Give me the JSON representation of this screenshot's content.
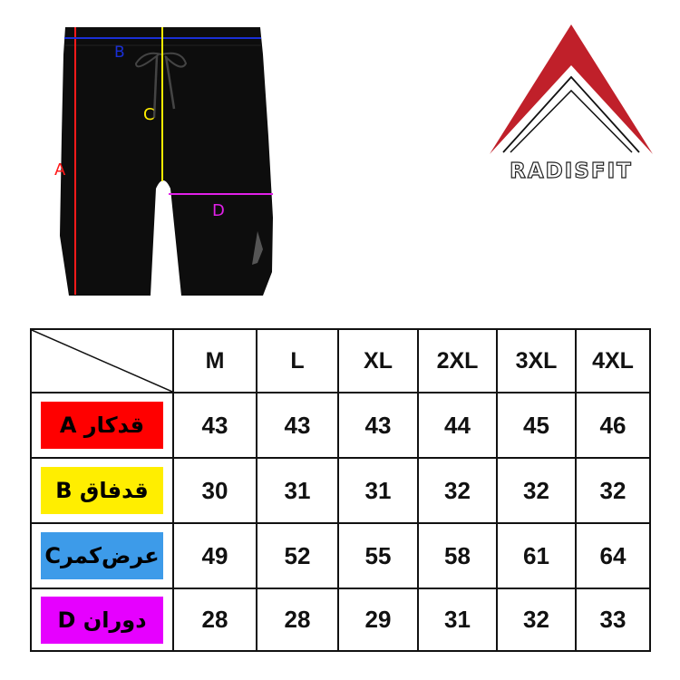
{
  "product_image": {
    "measure_labels": [
      {
        "letter": "A",
        "color": "#ff1a1a"
      },
      {
        "letter": "B",
        "color": "#1a2fd6"
      },
      {
        "letter": "C",
        "color": "#ffee00"
      },
      {
        "letter": "D",
        "color": "#e020e8"
      }
    ],
    "garment_color": "#0d0d0d"
  },
  "logo": {
    "text": "RADISFIT",
    "accent": "#c0202a"
  },
  "size_table": {
    "sizes": [
      "M",
      "L",
      "XL",
      "2XL",
      "3XL",
      "4XL"
    ],
    "rows": [
      {
        "label": "قدکار A",
        "color": "#ff0000",
        "values": [
          "43",
          "43",
          "43",
          "44",
          "45",
          "46"
        ]
      },
      {
        "label": "قدفاق B",
        "color": "#ffee00",
        "values": [
          "30",
          "31",
          "31",
          "32",
          "32",
          "32"
        ]
      },
      {
        "label": "عرض‌کمرC",
        "color": "#3d9be9",
        "values": [
          "49",
          "52",
          "55",
          "58",
          "61",
          "64"
        ]
      },
      {
        "label": "دوران D",
        "color": "#e600ff",
        "values": [
          "28",
          "28",
          "29",
          "31",
          "32",
          "33"
        ]
      }
    ]
  }
}
